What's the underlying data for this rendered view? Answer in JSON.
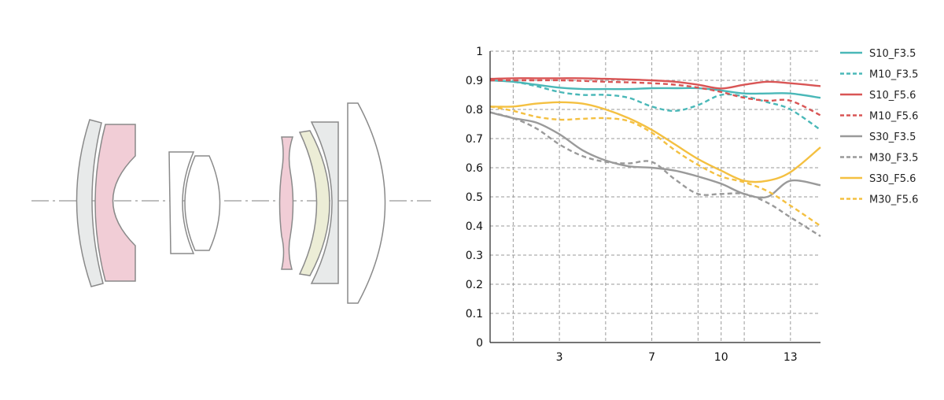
{
  "diagram": {
    "name": "lens-construction",
    "elements": [
      {
        "name": "lens-element-1",
        "group": 1,
        "fill": "#e8eaea"
      },
      {
        "name": "lens-element-2",
        "group": 1,
        "fill": "#f1cdd6",
        "special": "aspherical"
      },
      {
        "name": "lens-element-3",
        "group": 2,
        "fill": "#ffffff"
      },
      {
        "name": "lens-element-4",
        "group": 2,
        "fill": "#ffffff"
      },
      {
        "name": "lens-element-5",
        "group": 3,
        "fill": "#f1cdd6",
        "special": "aspherical"
      },
      {
        "name": "lens-element-6",
        "group": 3,
        "fill": "#ecedd6",
        "special": "low-dispersion"
      },
      {
        "name": "lens-element-7",
        "group": 3,
        "fill": "#e8eaea"
      },
      {
        "name": "lens-element-8",
        "group": 3,
        "fill": "#ffffff"
      }
    ],
    "stroke_color": "#8a8a8a",
    "axis_color": "#a8a8a8"
  },
  "chart_data": {
    "type": "line",
    "title": "",
    "xlabel": "",
    "ylabel": "",
    "xlim": [
      0,
      14.3
    ],
    "ylim": [
      0,
      1
    ],
    "xticks": [
      3,
      7,
      10,
      13
    ],
    "xtick_labels": [
      "3",
      "7",
      "10",
      "13"
    ],
    "yticks": [
      0,
      0.1,
      0.2,
      0.3,
      0.4,
      0.5,
      0.6,
      0.7,
      0.8,
      0.9,
      1
    ],
    "ytick_labels": [
      "0",
      "0.1",
      "0.2",
      "0.3",
      "0.4",
      "0.5",
      "0.6",
      "0.7",
      "0.8",
      "0.9",
      "1"
    ],
    "grid": true,
    "legend_position": "right",
    "series": [
      {
        "name": "S10_F3.5",
        "color": "#4ab8b8",
        "dash": "solid",
        "points": [
          [
            0,
            0.9
          ],
          [
            1,
            0.895
          ],
          [
            2,
            0.885
          ],
          [
            3,
            0.875
          ],
          [
            4,
            0.87
          ],
          [
            5,
            0.87
          ],
          [
            6,
            0.87
          ],
          [
            7,
            0.873
          ],
          [
            8,
            0.873
          ],
          [
            9,
            0.873
          ],
          [
            10,
            0.865
          ],
          [
            11,
            0.855
          ],
          [
            12,
            0.855
          ],
          [
            13,
            0.855
          ],
          [
            14.3,
            0.84
          ]
        ]
      },
      {
        "name": "M10_F3.5",
        "color": "#4ab8b8",
        "dash": "dashed",
        "points": [
          [
            0,
            0.9
          ],
          [
            1,
            0.895
          ],
          [
            2,
            0.88
          ],
          [
            3,
            0.86
          ],
          [
            4,
            0.85
          ],
          [
            5,
            0.85
          ],
          [
            6,
            0.84
          ],
          [
            7,
            0.81
          ],
          [
            8,
            0.795
          ],
          [
            9,
            0.815
          ],
          [
            10,
            0.85
          ],
          [
            11,
            0.845
          ],
          [
            12,
            0.825
          ],
          [
            13,
            0.8
          ],
          [
            14.3,
            0.73
          ]
        ]
      },
      {
        "name": "S10_F5.6",
        "color": "#d95555",
        "dash": "solid",
        "points": [
          [
            0,
            0.905
          ],
          [
            1,
            0.907
          ],
          [
            2,
            0.907
          ],
          [
            3,
            0.907
          ],
          [
            4,
            0.907
          ],
          [
            5,
            0.905
          ],
          [
            6,
            0.903
          ],
          [
            7,
            0.9
          ],
          [
            8,
            0.895
          ],
          [
            9,
            0.885
          ],
          [
            10,
            0.872
          ],
          [
            11,
            0.885
          ],
          [
            12,
            0.895
          ],
          [
            13,
            0.89
          ],
          [
            14.3,
            0.88
          ]
        ]
      },
      {
        "name": "M10_F5.6",
        "color": "#d95555",
        "dash": "dashed",
        "points": [
          [
            0,
            0.9
          ],
          [
            1,
            0.9
          ],
          [
            2,
            0.9
          ],
          [
            3,
            0.9
          ],
          [
            4,
            0.898
          ],
          [
            5,
            0.895
          ],
          [
            6,
            0.893
          ],
          [
            7,
            0.89
          ],
          [
            8,
            0.885
          ],
          [
            9,
            0.875
          ],
          [
            10,
            0.86
          ],
          [
            11,
            0.84
          ],
          [
            12,
            0.83
          ],
          [
            13,
            0.83
          ],
          [
            14.3,
            0.78
          ]
        ]
      },
      {
        "name": "S30_F3.5",
        "color": "#9a9a9a",
        "dash": "solid",
        "points": [
          [
            0,
            0.79
          ],
          [
            1,
            0.77
          ],
          [
            2,
            0.755
          ],
          [
            3,
            0.715
          ],
          [
            4,
            0.66
          ],
          [
            5,
            0.625
          ],
          [
            6,
            0.605
          ],
          [
            7,
            0.6
          ],
          [
            8,
            0.59
          ],
          [
            9,
            0.57
          ],
          [
            10,
            0.545
          ],
          [
            11,
            0.51
          ],
          [
            12,
            0.5
          ],
          [
            13,
            0.555
          ],
          [
            14.3,
            0.54
          ]
        ]
      },
      {
        "name": "M30_F3.5",
        "color": "#9a9a9a",
        "dash": "dashed",
        "points": [
          [
            0,
            0.79
          ],
          [
            1,
            0.77
          ],
          [
            2,
            0.735
          ],
          [
            3,
            0.68
          ],
          [
            4,
            0.64
          ],
          [
            5,
            0.62
          ],
          [
            6,
            0.615
          ],
          [
            7,
            0.62
          ],
          [
            8,
            0.56
          ],
          [
            9,
            0.51
          ],
          [
            10,
            0.51
          ],
          [
            11,
            0.51
          ],
          [
            12,
            0.48
          ],
          [
            13,
            0.43
          ],
          [
            14.3,
            0.365
          ]
        ]
      },
      {
        "name": "S30_F5.6",
        "color": "#f4c041",
        "dash": "solid",
        "points": [
          [
            0,
            0.81
          ],
          [
            1,
            0.81
          ],
          [
            2,
            0.82
          ],
          [
            3,
            0.825
          ],
          [
            4,
            0.82
          ],
          [
            5,
            0.8
          ],
          [
            6,
            0.77
          ],
          [
            7,
            0.73
          ],
          [
            8,
            0.68
          ],
          [
            9,
            0.63
          ],
          [
            10,
            0.59
          ],
          [
            11,
            0.555
          ],
          [
            12,
            0.555
          ],
          [
            13,
            0.585
          ],
          [
            14.3,
            0.67
          ]
        ]
      },
      {
        "name": "M30_F5.6",
        "color": "#f4c041",
        "dash": "dashed",
        "points": [
          [
            0,
            0.81
          ],
          [
            1,
            0.795
          ],
          [
            2,
            0.775
          ],
          [
            3,
            0.765
          ],
          [
            4,
            0.768
          ],
          [
            5,
            0.77
          ],
          [
            6,
            0.76
          ],
          [
            7,
            0.72
          ],
          [
            8,
            0.66
          ],
          [
            9,
            0.61
          ],
          [
            10,
            0.57
          ],
          [
            11,
            0.55
          ],
          [
            12,
            0.52
          ],
          [
            13,
            0.47
          ],
          [
            14.3,
            0.4
          ]
        ]
      }
    ]
  }
}
